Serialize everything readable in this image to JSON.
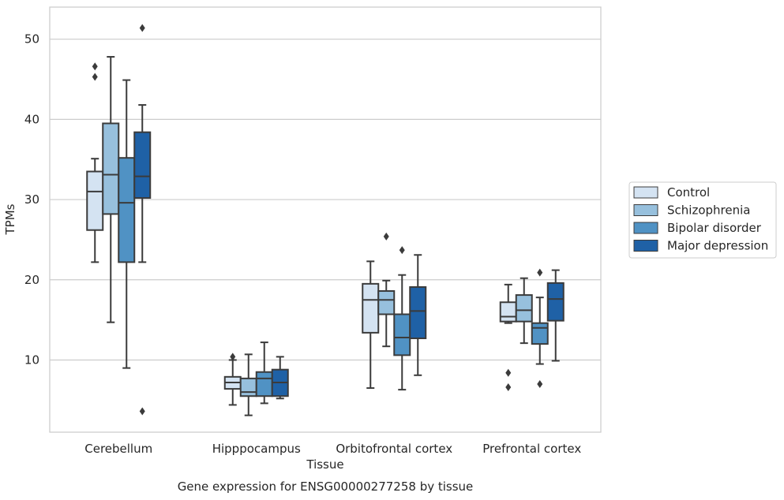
{
  "chart_data": {
    "type": "box",
    "caption": "Gene expression for ENSG00000277258 by tissue",
    "xlabel": "Tissue",
    "ylabel": "TPMs",
    "ylim": [
      1,
      54
    ],
    "yticks": [
      10,
      20,
      30,
      40,
      50
    ],
    "grid": "horizontal",
    "legend_position": "right",
    "categories": [
      "Cerebellum",
      "Hipppocampus",
      "Orbitofrontal cortex",
      "Prefrontal cortex"
    ],
    "series": [
      {
        "name": "Control",
        "color": "#d4e3f2",
        "boxes": [
          {
            "whislo": 22.2,
            "q1": 26.2,
            "med": 31.0,
            "q3": 33.5,
            "whishi": 35.1,
            "fliers": [
              45.3,
              46.6
            ]
          },
          {
            "whislo": 4.4,
            "q1": 6.4,
            "med": 7.2,
            "q3": 7.9,
            "whishi": 10.0,
            "fliers": [
              10.4
            ]
          },
          {
            "whislo": 6.5,
            "q1": 13.4,
            "med": 17.5,
            "q3": 19.5,
            "whishi": 22.3,
            "fliers": []
          },
          {
            "whislo": 14.6,
            "q1": 14.8,
            "med": 15.4,
            "q3": 17.2,
            "whishi": 19.4,
            "fliers": [
              8.4,
              6.6
            ]
          }
        ]
      },
      {
        "name": "Schizophrenia",
        "color": "#97c0dd",
        "boxes": [
          {
            "whislo": 14.7,
            "q1": 28.2,
            "med": 33.1,
            "q3": 39.5,
            "whishi": 47.8,
            "fliers": []
          },
          {
            "whislo": 3.1,
            "q1": 5.5,
            "med": 6.0,
            "q3": 7.7,
            "whishi": 10.7,
            "fliers": []
          },
          {
            "whislo": 11.7,
            "q1": 15.7,
            "med": 17.5,
            "q3": 18.6,
            "whishi": 19.9,
            "fliers": [
              25.4
            ]
          },
          {
            "whislo": 12.1,
            "q1": 14.8,
            "med": 16.2,
            "q3": 18.1,
            "whishi": 20.2,
            "fliers": []
          }
        ]
      },
      {
        "name": "Bipolar disorder",
        "color": "#5092c4",
        "boxes": [
          {
            "whislo": 9.0,
            "q1": 22.2,
            "med": 29.6,
            "q3": 35.2,
            "whishi": 44.9,
            "fliers": []
          },
          {
            "whislo": 4.6,
            "q1": 5.5,
            "med": 7.7,
            "q3": 8.5,
            "whishi": 12.2,
            "fliers": []
          },
          {
            "whislo": 6.3,
            "q1": 10.6,
            "med": 12.8,
            "q3": 15.7,
            "whishi": 20.6,
            "fliers": [
              23.7
            ]
          },
          {
            "whislo": 9.5,
            "q1": 12.0,
            "med": 14.0,
            "q3": 14.6,
            "whishi": 17.8,
            "fliers": [
              20.9,
              7.0
            ]
          }
        ]
      },
      {
        "name": "Major depression",
        "color": "#1f61a6",
        "boxes": [
          {
            "whislo": 22.2,
            "q1": 30.2,
            "med": 32.9,
            "q3": 38.4,
            "whishi": 41.8,
            "fliers": [
              51.4,
              3.6
            ]
          },
          {
            "whislo": 5.2,
            "q1": 5.5,
            "med": 7.2,
            "q3": 8.8,
            "whishi": 10.4,
            "fliers": []
          },
          {
            "whislo": 8.1,
            "q1": 12.7,
            "med": 16.1,
            "q3": 19.1,
            "whishi": 23.1,
            "fliers": []
          },
          {
            "whislo": 9.9,
            "q1": 14.9,
            "med": 17.6,
            "q3": 19.6,
            "whishi": 21.2,
            "fliers": []
          }
        ]
      }
    ]
  }
}
